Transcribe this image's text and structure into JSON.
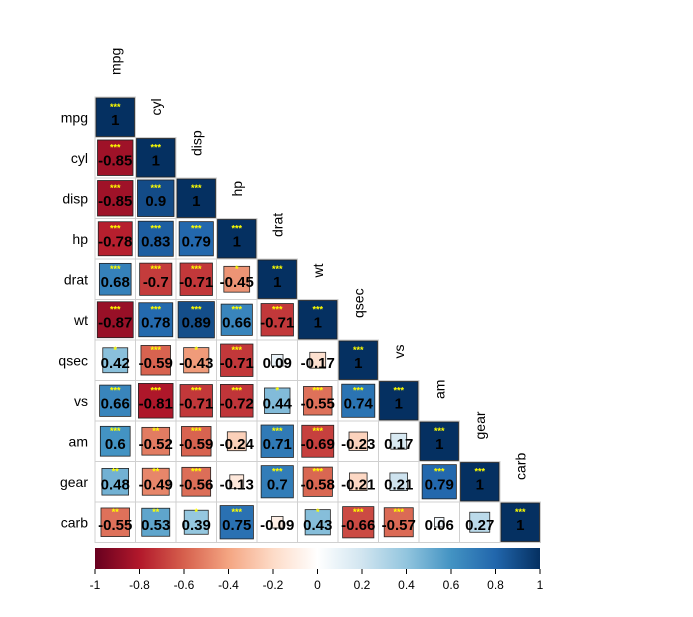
{
  "chart_data": {
    "type": "heatmap",
    "variables": [
      "mpg",
      "cyl",
      "disp",
      "hp",
      "drat",
      "wt",
      "qsec",
      "vs",
      "am",
      "gear",
      "carb"
    ],
    "lower_triangle": [
      [
        "1"
      ],
      [
        "-0.85",
        "1"
      ],
      [
        "-0.85",
        "0.9",
        "1"
      ],
      [
        "-0.78",
        "0.83",
        "0.79",
        "1"
      ],
      [
        "0.68",
        "-0.7",
        "-0.71",
        "-0.45",
        "1"
      ],
      [
        "-0.87",
        "0.78",
        "0.89",
        "0.66",
        "-0.71",
        "1"
      ],
      [
        "0.42",
        "-0.59",
        "-0.43",
        "-0.71",
        "0.09",
        "-0.17",
        "1"
      ],
      [
        "0.66",
        "-0.81",
        "-0.71",
        "-0.72",
        "0.44",
        "-0.55",
        "0.74",
        "1"
      ],
      [
        "0.6",
        "-0.52",
        "-0.59",
        "-0.24",
        "0.71",
        "-0.69",
        "-0.23",
        "0.17",
        "1"
      ],
      [
        "0.48",
        "-0.49",
        "-0.56",
        "-0.13",
        "0.7",
        "-0.58",
        "-0.21",
        "0.21",
        "0.79",
        "1"
      ],
      [
        "-0.55",
        "0.53",
        "0.39",
        "0.75",
        "-0.09",
        "0.43",
        "-0.66",
        "-0.57",
        "0.06",
        "0.27",
        "1"
      ]
    ],
    "significance": [
      [
        "***"
      ],
      [
        "***",
        "***"
      ],
      [
        "***",
        "***",
        "***"
      ],
      [
        "***",
        "***",
        "***",
        "***"
      ],
      [
        "***",
        "***",
        "***",
        "*",
        "***"
      ],
      [
        "***",
        "***",
        "***",
        "***",
        "***",
        "***"
      ],
      [
        "*",
        "***",
        "*",
        "***",
        "",
        "",
        "***"
      ],
      [
        "***",
        "***",
        "***",
        "***",
        "*",
        "***",
        "***",
        "***"
      ],
      [
        "***",
        "**",
        "***",
        "",
        "***",
        "***",
        "",
        "",
        "***"
      ],
      [
        "**",
        "**",
        "***",
        "",
        "***",
        "***",
        "",
        "",
        "***",
        "***"
      ],
      [
        "**",
        "**",
        "*",
        "***",
        "",
        "*",
        "***",
        "***",
        "",
        "",
        "***"
      ]
    ],
    "colorbar": {
      "range": [
        -1,
        1
      ],
      "ticks": [
        "-1",
        "-0.8",
        "-0.6",
        "-0.4",
        "-0.2",
        "0",
        "0.2",
        "0.4",
        "0.6",
        "0.8",
        "1"
      ],
      "colors": [
        "#67001f",
        "#b2182b",
        "#d6604d",
        "#f4a582",
        "#fddbc7",
        "#ffffff",
        "#d1e5f0",
        "#92c5de",
        "#4393c3",
        "#2166ac",
        "#053061"
      ]
    },
    "star_color": "#ffff00",
    "label_color": "#000000"
  }
}
